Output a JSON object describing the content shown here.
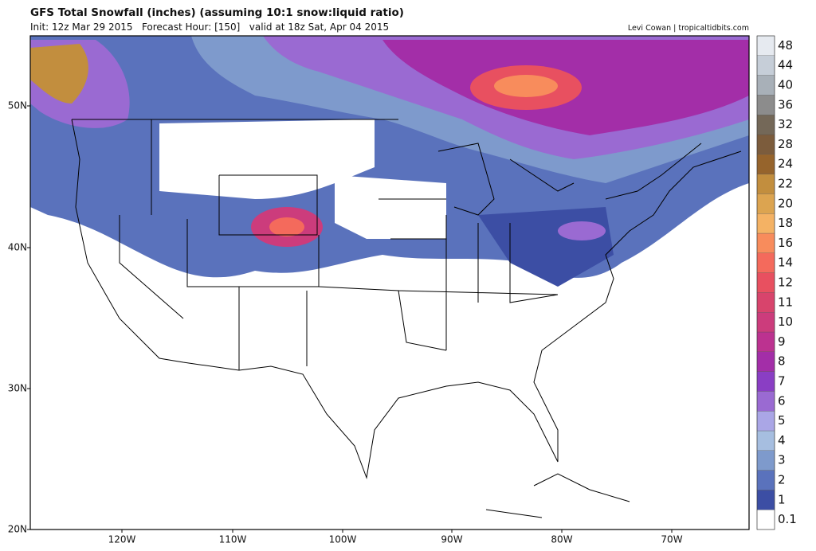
{
  "header": {
    "title": "GFS Total Snowfall (inches) (assuming 10:1 snow:liquid ratio)",
    "subtitle": "Init: 12z Mar 29 2015   Forecast Hour: [150]   valid at 18z Sat, Apr 04 2015",
    "credit": "Levi Cowan | tropicaltidbits.com"
  },
  "map": {
    "lat_labels": [
      "50N",
      "40N",
      "30N",
      "20N"
    ],
    "lon_labels": [
      "120W",
      "110W",
      "100W",
      "90W",
      "80W",
      "70W"
    ]
  },
  "colorbar": {
    "levels": [
      0.1,
      1,
      2,
      3,
      4,
      5,
      6,
      7,
      8,
      9,
      10,
      11,
      12,
      14,
      16,
      18,
      20,
      22,
      24,
      28,
      32,
      36,
      40,
      44,
      48
    ],
    "colors": [
      "#ffffff",
      "#3c4ea4",
      "#5a72bc",
      "#7e9acc",
      "#a6bee0",
      "#aaa6e6",
      "#9a6ad2",
      "#8a3ec4",
      "#a32ea8",
      "#bc3290",
      "#cc3c7c",
      "#d8446c",
      "#e85060",
      "#f46a5c",
      "#f88c5c",
      "#f4b264",
      "#dca450",
      "#c28e3e",
      "#96642c",
      "#7c5c3c",
      "#746858",
      "#8c8c8c",
      "#a8b0b8",
      "#c6ced8",
      "#e6eaf0"
    ]
  }
}
